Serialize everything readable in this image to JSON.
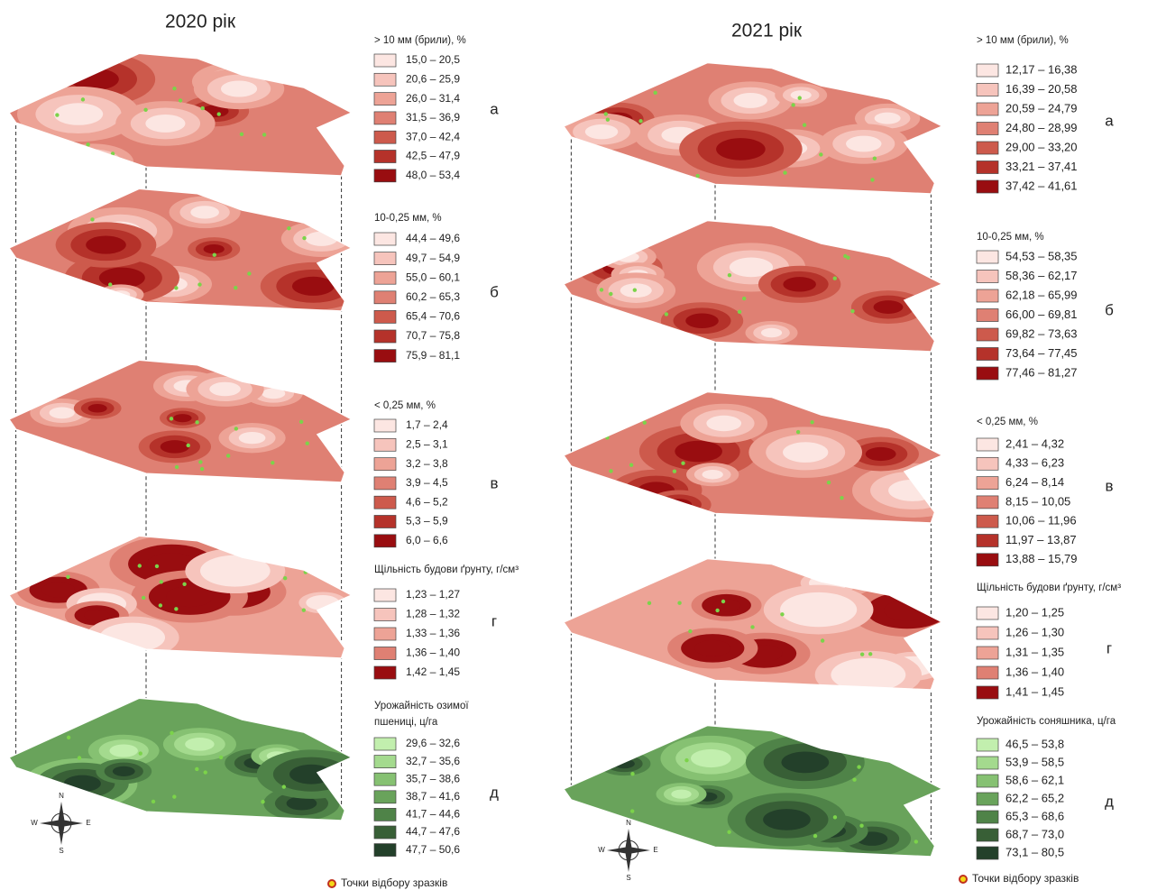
{
  "panels": [
    {
      "title": "2020 рік",
      "footer": "Точки відбору зразків",
      "layers": [
        {
          "letter": "а",
          "legend_title": [
            "> 10 мм (брили), %"
          ],
          "items": [
            {
              "label": "15,0 – 20,5",
              "color": "#fce6e2"
            },
            {
              "label": "20,6 – 25,9",
              "color": "#f6c4bc"
            },
            {
              "label": "26,0 – 31,4",
              "color": "#eda396"
            },
            {
              "label": "31,5 – 36,9",
              "color": "#df8073"
            },
            {
              "label": "37,0 – 42,4",
              "color": "#cd5a4c"
            },
            {
              "label": "42,5 – 47,9",
              "color": "#b5322a"
            },
            {
              "label": "48,0 – 53,4",
              "color": "#990d10"
            }
          ]
        },
        {
          "letter": "б",
          "legend_title": [
            "10-0,25 мм, %"
          ],
          "items": [
            {
              "label": "44,4 – 49,6",
              "color": "#fce6e2"
            },
            {
              "label": "49,7 – 54,9",
              "color": "#f6c4bc"
            },
            {
              "label": "55,0 – 60,1",
              "color": "#eda396"
            },
            {
              "label": "60,2 – 65,3",
              "color": "#df8073"
            },
            {
              "label": "65,4 – 70,6",
              "color": "#cd5a4c"
            },
            {
              "label": "70,7 – 75,8",
              "color": "#b5322a"
            },
            {
              "label": "75,9 – 81,1",
              "color": "#990d10"
            }
          ]
        },
        {
          "letter": "в",
          "legend_title": [
            "< 0,25 мм, %"
          ],
          "items": [
            {
              "label": "1,7 – 2,4",
              "color": "#fce6e2"
            },
            {
              "label": "2,5 – 3,1",
              "color": "#f6c4bc"
            },
            {
              "label": "3,2 – 3,8",
              "color": "#eda396"
            },
            {
              "label": "3,9 – 4,5",
              "color": "#df8073"
            },
            {
              "label": "4,6 – 5,2",
              "color": "#cd5a4c"
            },
            {
              "label": "5,3 – 5,9",
              "color": "#b5322a"
            },
            {
              "label": "6,0 – 6,6",
              "color": "#990d10"
            }
          ]
        },
        {
          "letter": "г",
          "legend_title": [
            "Щільність будови ґрунту, г/см³"
          ],
          "items": [
            {
              "label": "1,23 – 1,27",
              "color": "#fce6e2"
            },
            {
              "label": "1,28 – 1,32",
              "color": "#f6c4bc"
            },
            {
              "label": "1,33 – 1,36",
              "color": "#eda396"
            },
            {
              "label": "1,36 – 1,40",
              "color": "#df8073"
            },
            {
              "label": "1,42 – 1,45",
              "color": "#990d10"
            }
          ]
        },
        {
          "letter": "д",
          "legend_title": [
            "Урожайність озимої",
            "пшениці, ц/га"
          ],
          "items": [
            {
              "label": "29,6 – 32,6",
              "color": "#c2efae"
            },
            {
              "label": "32,7 – 35,6",
              "color": "#a4da8e"
            },
            {
              "label": "35,7 – 38,6",
              "color": "#86c172"
            },
            {
              "label": "38,7 – 41,6",
              "color": "#69a35b"
            },
            {
              "label": "41,7 – 44,6",
              "color": "#4f8348"
            },
            {
              "label": "44,7 – 47,6",
              "color": "#385f36"
            },
            {
              "label": "47,7 – 50,6",
              "color": "#23402a"
            }
          ]
        }
      ]
    },
    {
      "title": "2021 рік",
      "footer": "Точки відбору зразків",
      "layers": [
        {
          "letter": "а",
          "legend_title": [
            "> 10 мм (брили), %"
          ],
          "items": [
            {
              "label": "12,17 – 16,38",
              "color": "#fce6e2"
            },
            {
              "label": "16,39 – 20,58",
              "color": "#f6c4bc"
            },
            {
              "label": "20,59 – 24,79",
              "color": "#eda396"
            },
            {
              "label": "24,80 – 28,99",
              "color": "#df8073"
            },
            {
              "label": "29,00 – 33,20",
              "color": "#cd5a4c"
            },
            {
              "label": "33,21 – 37,41",
              "color": "#b5322a"
            },
            {
              "label": "37,42 – 41,61",
              "color": "#990d10"
            }
          ]
        },
        {
          "letter": "б",
          "legend_title": [
            "10-0,25 мм, %"
          ],
          "items": [
            {
              "label": "54,53 – 58,35",
              "color": "#fce6e2"
            },
            {
              "label": "58,36 – 62,17",
              "color": "#f6c4bc"
            },
            {
              "label": "62,18 – 65,99",
              "color": "#eda396"
            },
            {
              "label": "66,00 – 69,81",
              "color": "#df8073"
            },
            {
              "label": "69,82 – 73,63",
              "color": "#cd5a4c"
            },
            {
              "label": "73,64 – 77,45",
              "color": "#b5322a"
            },
            {
              "label": "77,46 – 81,27",
              "color": "#990d10"
            }
          ]
        },
        {
          "letter": "в",
          "legend_title": [
            "< 0,25 мм, %"
          ],
          "items": [
            {
              "label": "2,41 – 4,32",
              "color": "#fce6e2"
            },
            {
              "label": "4,33 – 6,23",
              "color": "#f6c4bc"
            },
            {
              "label": "6,24 – 8,14",
              "color": "#eda396"
            },
            {
              "label": "8,15 – 10,05",
              "color": "#df8073"
            },
            {
              "label": "10,06 – 11,96",
              "color": "#cd5a4c"
            },
            {
              "label": "11,97 – 13,87",
              "color": "#b5322a"
            },
            {
              "label": "13,88 – 15,79",
              "color": "#990d10"
            }
          ]
        },
        {
          "letter": "г",
          "legend_title": [
            "Щільність будови ґрунту, г/см³"
          ],
          "items": [
            {
              "label": "1,20 – 1,25",
              "color": "#fce6e2"
            },
            {
              "label": "1,26 – 1,30",
              "color": "#f6c4bc"
            },
            {
              "label": "1,31 – 1,35",
              "color": "#eda396"
            },
            {
              "label": "1,36 – 1,40",
              "color": "#df8073"
            },
            {
              "label": "1,41 – 1,45",
              "color": "#990d10"
            }
          ]
        },
        {
          "letter": "д",
          "legend_title": [
            "Урожайність соняшника, ц/га"
          ],
          "items": [
            {
              "label": "46,5 – 53,8",
              "color": "#c2efae"
            },
            {
              "label": "53,9 – 58,5",
              "color": "#a4da8e"
            },
            {
              "label": "58,6 – 62,1",
              "color": "#86c172"
            },
            {
              "label": "62,2 – 65,2",
              "color": "#69a35b"
            },
            {
              "label": "65,3 – 68,6",
              "color": "#4f8348"
            },
            {
              "label": "68,7 – 73,0",
              "color": "#385f36"
            },
            {
              "label": "73,1 – 80,5",
              "color": "#23402a"
            }
          ]
        }
      ]
    }
  ]
}
